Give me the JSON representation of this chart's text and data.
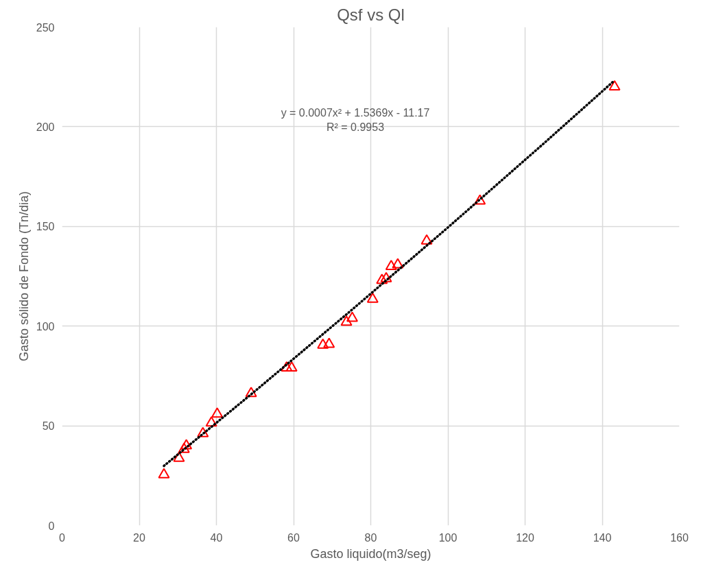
{
  "chart_data": {
    "type": "scatter",
    "title": "Qsf vs Ql",
    "xlabel": "Gasto liquido(m3/seg)",
    "ylabel": "Gasto sólido de Fondo (Tn/dia)",
    "xlim": [
      0,
      160
    ],
    "xticks": [
      0,
      20,
      40,
      60,
      80,
      100,
      120,
      140,
      160
    ],
    "ylim": [
      0,
      250
    ],
    "yticks": [
      0,
      50,
      100,
      150,
      200,
      250
    ],
    "grid": true,
    "series": [
      {
        "color": "#ff0000",
        "marker": "triangle",
        "x": [
          26.4,
          30.3,
          31.6,
          32.2,
          36.5,
          38.7,
          40.2,
          49.0,
          58.2,
          59.5,
          67.6,
          69.2,
          73.7,
          75.2,
          80.5,
          82.9,
          84.0,
          85.3,
          87.0,
          94.5,
          108.3,
          143.2
        ],
        "values": [
          25.5,
          33.7,
          38.2,
          40.0,
          46.1,
          51.4,
          55.9,
          66.2,
          79.0,
          79.0,
          90.5,
          90.9,
          102.0,
          104.0,
          113.5,
          123.0,
          123.8,
          129.9,
          130.8,
          142.7,
          162.8,
          220.0
        ]
      },
      {
        "type": "line",
        "color": "#000000",
        "line_style": "dotted",
        "x": [
          26.4,
          50,
          75,
          100,
          125,
          143.2
        ],
        "values": [
          29.9,
          67.4,
          108.0,
          149.5,
          191.9,
          223.3
        ]
      }
    ],
    "annotations": [
      "y = 0.0007x² + 1.5369x - 11.17",
      "R² = 0.9953"
    ]
  }
}
